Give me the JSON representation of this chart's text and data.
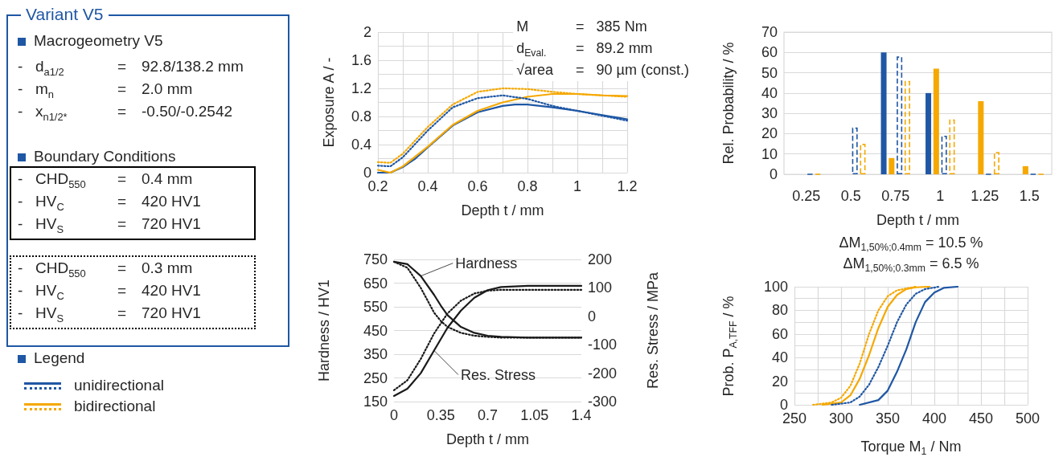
{
  "chart_data": [
    {
      "type": "other",
      "title": "Variant V5",
      "annotations": [
        "Macrogeometry V5",
        "- d$_{a1/2}$ = 92.8/138.2 mm",
        "- m$_{n}$ = 2.0 mm",
        "- x$_{n1/2*}$ = -0.50/-0.2542",
        "Boundary Conditions",
        "- CHD$_{550}$ = 0.4 mm",
        "- HV$_{C}$ = 420 HV1",
        "- HV$_{S}$ = 720 HV1",
        "- CHD$_{550}$ = 0.3 mm",
        "- HV$_{C}$ = 420 HV1",
        "- HV$_{S}$ = 720 HV1",
        "Legend",
        "unidirectional",
        "bidirectional"
      ]
    },
    {
      "type": "line",
      "xlabel": "Depth t / mm",
      "ylabel": "Exposure A / -",
      "xlim": [
        0.2,
        1.2
      ],
      "ylim": [
        0,
        2
      ],
      "xticks": [
        0.2,
        {
          "value": 0.3,
          "label": null
        },
        0.4,
        {
          "value": 0.5,
          "label": null
        },
        0.6,
        {
          "value": 0.7,
          "label": null
        },
        0.8,
        {
          "value": 0.9,
          "label": null
        },
        1,
        {
          "value": 1.1,
          "label": null
        },
        1.2
      ],
      "yticks": [
        0,
        {
          "value": 0.2,
          "label": null
        },
        0.4,
        {
          "value": 0.6,
          "label": null
        },
        0.8,
        {
          "value": 1,
          "label": null
        },
        1.2,
        {
          "value": 1.4,
          "label": null
        },
        1.6,
        {
          "value": 1.8,
          "label": null
        },
        2
      ],
      "grid": true,
      "marker": "none",
      "annotations": [
        "M = 385 Nm",
        "d$_{Eval.}$ = 89.2 mm",
        "√area = 90 µm (const.)"
      ],
      "series": [
        {
          "color": "#1f57a4",
          "line_style": "solid",
          "x": [
            0.2,
            0.25,
            0.3,
            0.35,
            0.4,
            0.5,
            0.6,
            0.7,
            0.75,
            0.8,
            0.9,
            1.0,
            1.1,
            1.2
          ],
          "values": [
            0.0,
            0.0,
            0.08,
            0.2,
            0.36,
            0.67,
            0.86,
            0.95,
            0.97,
            0.97,
            0.93,
            0.88,
            0.82,
            0.76
          ]
        },
        {
          "color": "#f5a800",
          "line_style": "solid",
          "x": [
            0.2,
            0.25,
            0.3,
            0.4,
            0.5,
            0.6,
            0.7,
            0.8,
            0.9,
            1.0,
            1.1,
            1.2
          ],
          "values": [
            0.04,
            0.0,
            0.09,
            0.37,
            0.68,
            0.88,
            1.0,
            1.08,
            1.12,
            1.12,
            1.1,
            1.09
          ]
        },
        {
          "color": "#1f57a4",
          "line_style": "dotted",
          "x": [
            0.2,
            0.25,
            0.3,
            0.4,
            0.5,
            0.6,
            0.7,
            0.8,
            0.9,
            1.0,
            1.1,
            1.2
          ],
          "values": [
            0.1,
            0.09,
            0.22,
            0.6,
            0.93,
            1.06,
            1.1,
            1.05,
            0.95,
            0.88,
            0.81,
            0.74
          ]
        },
        {
          "color": "#f5a800",
          "line_style": "dotted",
          "x": [
            0.2,
            0.25,
            0.3,
            0.4,
            0.5,
            0.6,
            0.7,
            0.8,
            0.9,
            1.0,
            1.1,
            1.2
          ],
          "values": [
            0.15,
            0.14,
            0.27,
            0.65,
            0.97,
            1.15,
            1.2,
            1.19,
            1.15,
            1.12,
            1.1,
            1.08
          ]
        }
      ]
    },
    {
      "type": "bar",
      "xlabel": "Depth t / mm",
      "ylabel": "Rel. Probability / %",
      "categories": [
        "0.25",
        "0.5",
        "0.75",
        "1",
        "1.25",
        "1.5"
      ],
      "ylim": [
        0,
        70
      ],
      "yticks": [
        0,
        10,
        20,
        30,
        40,
        50,
        60,
        70
      ],
      "grid": "y",
      "series": [
        {
          "color": "#1f57a4",
          "line_style": "solid",
          "values": [
            0,
            0,
            60,
            40,
            0,
            0
          ]
        },
        {
          "color": "#f5a800",
          "line_style": "solid",
          "values": [
            0,
            0,
            8,
            52,
            36,
            4
          ]
        },
        {
          "color": "#1f57a4",
          "line_style": "dashed",
          "values": [
            0,
            23,
            58,
            19,
            0,
            0
          ]
        },
        {
          "color": "#f5a800",
          "line_style": "dashed",
          "values": [
            0,
            15,
            46,
            27,
            11,
            0
          ]
        }
      ]
    },
    {
      "type": "line",
      "xlabel": "Depth t / mm",
      "ylabel": "Hardness / HV1",
      "y2label": "Res. Stress / MPa",
      "xlim": [
        0,
        1.4
      ],
      "xticks": [
        0,
        0.35,
        0.7,
        1.05,
        1.4
      ],
      "ylim": [
        150,
        750
      ],
      "yticks": [
        150,
        250,
        350,
        450,
        550,
        650,
        750
      ],
      "y2lim": [
        -300,
        200
      ],
      "y2ticks": [
        -300,
        -200,
        -100,
        0,
        100,
        200
      ],
      "grid": "y",
      "marker": "none",
      "annotations": [
        {
          "text": "Hardness",
          "x": 0.2,
          "y": 680
        },
        {
          "text": "Res. Stress",
          "x": 0.3,
          "y": 365
        }
      ],
      "series": [
        {
          "color": "#1a1a1a",
          "line_style": "solid",
          "x": [
            0,
            0.1,
            0.2,
            0.3,
            0.35,
            0.4,
            0.5,
            0.6,
            0.7,
            0.8,
            1.0,
            1.4
          ],
          "values": [
            740,
            730,
            680,
            600,
            555,
            515,
            465,
            440,
            428,
            423,
            420,
            420
          ]
        },
        {
          "color": "#1a1a1a",
          "line_style": "dotted",
          "x": [
            0,
            0.1,
            0.2,
            0.3,
            0.35,
            0.4,
            0.5,
            0.6,
            0.7,
            0.8,
            1.4
          ],
          "values": [
            740,
            715,
            630,
            525,
            490,
            465,
            440,
            428,
            423,
            420,
            420
          ]
        },
        {
          "color": "#1a1a1a",
          "line_style": "solid",
          "axis": "y2",
          "x": [
            0,
            0.1,
            0.2,
            0.3,
            0.4,
            0.5,
            0.6,
            0.7,
            0.8,
            1.0,
            1.4
          ],
          "values": [
            -280,
            -255,
            -200,
            -120,
            -40,
            20,
            65,
            92,
            103,
            107,
            107
          ]
        },
        {
          "color": "#1a1a1a",
          "line_style": "dotted",
          "axis": "y2",
          "x": [
            0,
            0.1,
            0.2,
            0.3,
            0.4,
            0.5,
            0.6,
            0.7,
            0.8,
            1.4
          ],
          "values": [
            -260,
            -225,
            -150,
            -60,
            10,
            55,
            80,
            90,
            93,
            93
          ]
        }
      ]
    },
    {
      "type": "line",
      "xlabel": "Torque M$_{1}$ / Nm",
      "ylabel": "Prob. P$_{A,TFF}$ / %",
      "xlim": [
        250,
        500
      ],
      "xticks": [
        250,
        {
          "value": 275,
          "label": null
        },
        300,
        {
          "value": 325,
          "label": null
        },
        350,
        {
          "value": 375,
          "label": null
        },
        400,
        {
          "value": 425,
          "label": null
        },
        450,
        {
          "value": 475,
          "label": null
        },
        500
      ],
      "ylim": [
        0,
        100
      ],
      "yticks": [
        0,
        {
          "value": 10,
          "label": null
        },
        20,
        {
          "value": 30,
          "label": null
        },
        40,
        {
          "value": 50,
          "label": null
        },
        60,
        {
          "value": 70,
          "label": null
        },
        80,
        {
          "value": 90,
          "label": null
        },
        100
      ],
      "grid": true,
      "marker": "none",
      "annotations": [
        "ΔM$_{1,50%;0.4mm}$ = 10.5 %",
        "ΔM$_{1,50%;0.3mm}$ = 6.5 %"
      ],
      "series": [
        {
          "color": "#1f57a4",
          "line_style": "solid",
          "x": [
            320,
            340,
            350,
            360,
            370,
            380,
            390,
            400,
            410,
            425
          ],
          "values": [
            0,
            4,
            12,
            28,
            47,
            70,
            87,
            95,
            99,
            100
          ]
        },
        {
          "color": "#f5a800",
          "line_style": "solid",
          "x": [
            280,
            300,
            310,
            320,
            330,
            340,
            350,
            360,
            370,
            380,
            395
          ],
          "values": [
            0,
            2,
            8,
            22,
            42,
            65,
            83,
            93,
            98,
            99.5,
            100
          ]
        },
        {
          "color": "#1f57a4",
          "line_style": "dotted",
          "x": [
            290,
            310,
            320,
            330,
            340,
            350,
            360,
            370,
            380,
            390,
            405
          ],
          "values": [
            0,
            2,
            7,
            17,
            32,
            50,
            70,
            85,
            94,
            98,
            100
          ]
        },
        {
          "color": "#f5a800",
          "line_style": "dotted",
          "x": [
            270,
            290,
            300,
            310,
            320,
            330,
            340,
            350,
            360,
            380
          ],
          "values": [
            0,
            2,
            6,
            16,
            35,
            60,
            80,
            92,
            97,
            100
          ]
        }
      ]
    }
  ]
}
